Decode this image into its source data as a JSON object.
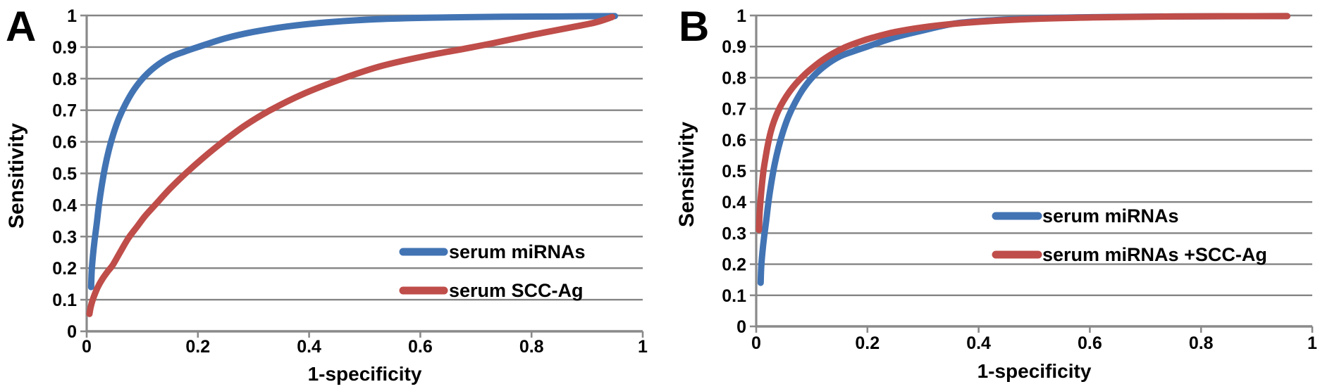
{
  "figure": {
    "background": "#ffffff",
    "text_color": "#000000",
    "grid_color": "#848484",
    "axis_color": "#8a8a8a"
  },
  "chart_data": [
    {
      "type": "line",
      "panel_label": "A",
      "title": "",
      "xlabel": "1-specificity",
      "ylabel": "Sensitivity",
      "xlim": [
        0,
        1
      ],
      "ylim": [
        0,
        1
      ],
      "x_ticks": [
        "0",
        "0.2",
        "0.4",
        "0.6",
        "0.8",
        "1"
      ],
      "y_ticks": [
        "0",
        "0.1",
        "0.2",
        "0.3",
        "0.4",
        "0.5",
        "0.6",
        "0.7",
        "0.8",
        "0.9",
        "1"
      ],
      "grid": "horizontal",
      "legend_position": "inside-lower-right",
      "series": [
        {
          "name": "serum miRNAs",
          "color": "#4274b4",
          "points": [
            [
              0.008,
              0.14
            ],
            [
              0.009,
              0.19
            ],
            [
              0.011,
              0.235
            ],
            [
              0.014,
              0.285
            ],
            [
              0.018,
              0.34
            ],
            [
              0.022,
              0.4
            ],
            [
              0.027,
              0.46
            ],
            [
              0.033,
              0.52
            ],
            [
              0.04,
              0.575
            ],
            [
              0.048,
              0.625
            ],
            [
              0.058,
              0.675
            ],
            [
              0.07,
              0.72
            ],
            [
              0.085,
              0.765
            ],
            [
              0.103,
              0.805
            ],
            [
              0.125,
              0.84
            ],
            [
              0.15,
              0.868
            ],
            [
              0.175,
              0.885
            ],
            [
              0.2,
              0.9
            ],
            [
              0.25,
              0.928
            ],
            [
              0.3,
              0.948
            ],
            [
              0.36,
              0.965
            ],
            [
              0.43,
              0.978
            ],
            [
              0.52,
              0.988
            ],
            [
              0.62,
              0.993
            ],
            [
              0.75,
              0.996
            ],
            [
              0.85,
              0.997
            ],
            [
              0.95,
              0.998
            ]
          ]
        },
        {
          "name": "serum SCC-Ag",
          "color": "#bf4d49",
          "points": [
            [
              0.005,
              0.055
            ],
            [
              0.007,
              0.075
            ],
            [
              0.01,
              0.095
            ],
            [
              0.014,
              0.115
            ],
            [
              0.02,
              0.14
            ],
            [
              0.028,
              0.165
            ],
            [
              0.038,
              0.19
            ],
            [
              0.047,
              0.21
            ],
            [
              0.06,
              0.25
            ],
            [
              0.075,
              0.295
            ],
            [
              0.09,
              0.33
            ],
            [
              0.105,
              0.365
            ],
            [
              0.123,
              0.4
            ],
            [
              0.15,
              0.452
            ],
            [
              0.178,
              0.5
            ],
            [
              0.21,
              0.55
            ],
            [
              0.245,
              0.6
            ],
            [
              0.285,
              0.652
            ],
            [
              0.33,
              0.7
            ],
            [
              0.39,
              0.752
            ],
            [
              0.46,
              0.8
            ],
            [
              0.53,
              0.84
            ],
            [
              0.61,
              0.872
            ],
            [
              0.68,
              0.895
            ],
            [
              0.73,
              0.912
            ],
            [
              0.8,
              0.938
            ],
            [
              0.87,
              0.962
            ],
            [
              0.915,
              0.978
            ],
            [
              0.945,
              0.995
            ]
          ]
        }
      ]
    },
    {
      "type": "line",
      "panel_label": "B",
      "title": "",
      "xlabel": "1-specificity",
      "ylabel": "Sensitivity",
      "xlim": [
        0,
        1
      ],
      "ylim": [
        0,
        1
      ],
      "x_ticks": [
        "0",
        "0.2",
        "0.4",
        "0.6",
        "0.8",
        "1"
      ],
      "y_ticks": [
        "0",
        "0.1",
        "0.2",
        "0.3",
        "0.4",
        "0.5",
        "0.6",
        "0.7",
        "0.8",
        "0.9",
        "1"
      ],
      "grid": "horizontal",
      "legend_position": "inside-right",
      "series": [
        {
          "name": "serum miRNAs",
          "color": "#4274b4",
          "points": [
            [
              0.008,
              0.14
            ],
            [
              0.009,
              0.19
            ],
            [
              0.011,
              0.235
            ],
            [
              0.014,
              0.285
            ],
            [
              0.018,
              0.34
            ],
            [
              0.022,
              0.4
            ],
            [
              0.027,
              0.46
            ],
            [
              0.033,
              0.52
            ],
            [
              0.04,
              0.575
            ],
            [
              0.048,
              0.625
            ],
            [
              0.058,
              0.675
            ],
            [
              0.07,
              0.72
            ],
            [
              0.085,
              0.765
            ],
            [
              0.103,
              0.805
            ],
            [
              0.125,
              0.84
            ],
            [
              0.15,
              0.868
            ],
            [
              0.175,
              0.885
            ],
            [
              0.2,
              0.9
            ],
            [
              0.25,
              0.93
            ],
            [
              0.3,
              0.952
            ],
            [
              0.36,
              0.975
            ],
            [
              0.43,
              0.985
            ],
            [
              0.52,
              0.992
            ],
            [
              0.62,
              0.995
            ],
            [
              0.75,
              0.997
            ],
            [
              0.955,
              0.998
            ]
          ]
        },
        {
          "name": "serum miRNAs +SCC-Ag",
          "color": "#bf4d49",
          "points": [
            [
              0.005,
              0.31
            ],
            [
              0.006,
              0.36
            ],
            [
              0.008,
              0.41
            ],
            [
              0.01,
              0.45
            ],
            [
              0.013,
              0.5
            ],
            [
              0.017,
              0.545
            ],
            [
              0.021,
              0.585
            ],
            [
              0.026,
              0.625
            ],
            [
              0.032,
              0.66
            ],
            [
              0.04,
              0.695
            ],
            [
              0.049,
              0.725
            ],
            [
              0.06,
              0.755
            ],
            [
              0.072,
              0.782
            ],
            [
              0.086,
              0.808
            ],
            [
              0.1,
              0.83
            ],
            [
              0.118,
              0.855
            ],
            [
              0.138,
              0.878
            ],
            [
              0.16,
              0.898
            ],
            [
              0.185,
              0.915
            ],
            [
              0.21,
              0.929
            ],
            [
              0.25,
              0.947
            ],
            [
              0.3,
              0.962
            ],
            [
              0.36,
              0.974
            ],
            [
              0.43,
              0.983
            ],
            [
              0.52,
              0.99
            ],
            [
              0.62,
              0.994
            ],
            [
              0.75,
              0.997
            ],
            [
              0.955,
              0.998
            ]
          ]
        }
      ]
    }
  ]
}
